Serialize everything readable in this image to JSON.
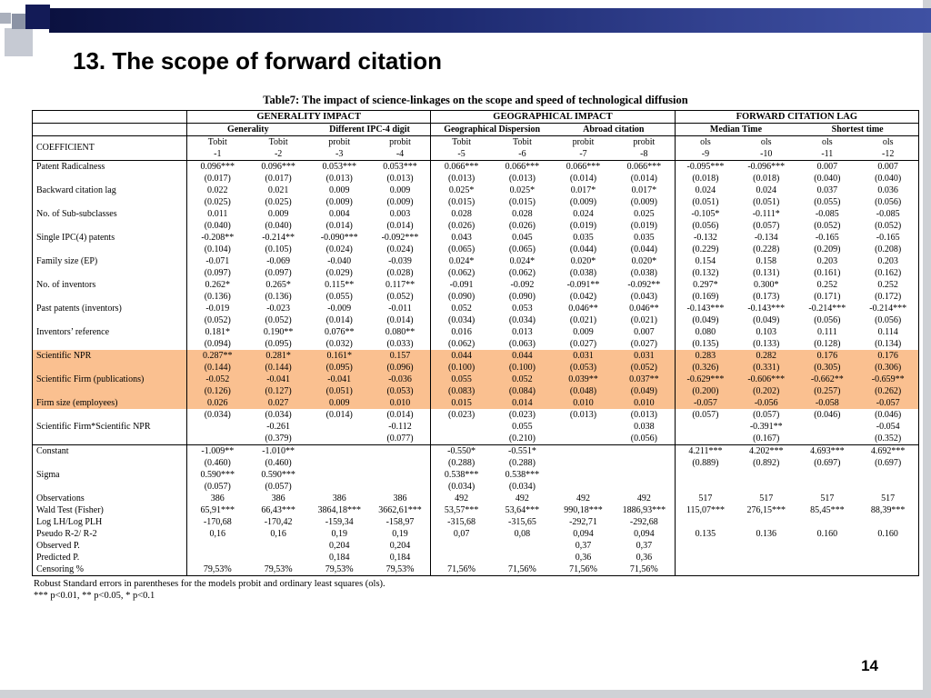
{
  "slide": {
    "title": "13. The scope of forward citation",
    "page_number": "14"
  },
  "table": {
    "caption": "Table7: The impact of science-linkages on the scope and speed of technological diffusion",
    "coefficient_header": "COEFFICIENT",
    "highlight_color": "#FAC090",
    "groups": [
      {
        "label": "GENERALITY IMPACT",
        "subgroups": [
          "Generality",
          "Different IPC-4 digit"
        ]
      },
      {
        "label": "GEOGRAPHICAL IMPACT",
        "subgroups": [
          "Geographical Dispersion",
          "Abroad citation"
        ]
      },
      {
        "label": "FORWARD CITATION LAG",
        "subgroups": [
          "Median Time",
          "Shortest time"
        ]
      }
    ],
    "methods": [
      "Tobit",
      "Tobit",
      "probit",
      "probit",
      "Tobit",
      "Tobit",
      "probit",
      "probit",
      "ols",
      "ols",
      "ols",
      "ols"
    ],
    "model_numbers": [
      "-1",
      "-2",
      "-3",
      "-4",
      "-5",
      "-6",
      "-7",
      "-8",
      "-9",
      "-10",
      "-11",
      "-12"
    ],
    "body_rows": [
      {
        "label": "Patent Radicalness",
        "cells": [
          "0.096***",
          "0.096***",
          "0.053***",
          "0.053***",
          "0.066***",
          "0.066***",
          "0.066***",
          "0.066***",
          "-0.095***",
          "-0.096***",
          "0.007",
          "0.007"
        ]
      },
      {
        "label": "",
        "cells": [
          "(0.017)",
          "(0.017)",
          "(0.013)",
          "(0.013)",
          "(0.013)",
          "(0.013)",
          "(0.014)",
          "(0.014)",
          "(0.018)",
          "(0.018)",
          "(0.040)",
          "(0.040)"
        ]
      },
      {
        "label": "Backward citation lag",
        "cells": [
          "0.022",
          "0.021",
          "0.009",
          "0.009",
          "0.025*",
          "0.025*",
          "0.017*",
          "0.017*",
          "0.024",
          "0.024",
          "0.037",
          "0.036"
        ]
      },
      {
        "label": "",
        "cells": [
          "(0.025)",
          "(0.025)",
          "(0.009)",
          "(0.009)",
          "(0.015)",
          "(0.015)",
          "(0.009)",
          "(0.009)",
          "(0.051)",
          "(0.051)",
          "(0.055)",
          "(0.056)"
        ]
      },
      {
        "label": "No. of Sub-subclasses",
        "cells": [
          "0.011",
          "0.009",
          "0.004",
          "0.003",
          "0.028",
          "0.028",
          "0.024",
          "0.025",
          "-0.105*",
          "-0.111*",
          "-0.085",
          "-0.085"
        ]
      },
      {
        "label": "",
        "cells": [
          "(0.040)",
          "(0.040)",
          "(0.014)",
          "(0.014)",
          "(0.026)",
          "(0.026)",
          "(0.019)",
          "(0.019)",
          "(0.056)",
          "(0.057)",
          "(0.052)",
          "(0.052)"
        ]
      },
      {
        "label": "Single IPC(4) patents",
        "cells": [
          "-0.208**",
          "-0.214**",
          "-0.090***",
          "-0.092***",
          "0.043",
          "0.045",
          "0.035",
          "0.035",
          "-0.132",
          "-0.134",
          "-0.165",
          "-0.165"
        ]
      },
      {
        "label": "",
        "cells": [
          "(0.104)",
          "(0.105)",
          "(0.024)",
          "(0.024)",
          "(0.065)",
          "(0.065)",
          "(0.044)",
          "(0.044)",
          "(0.229)",
          "(0.228)",
          "(0.209)",
          "(0.208)"
        ]
      },
      {
        "label": "Family size (EP)",
        "cells": [
          "-0.071",
          "-0.069",
          "-0.040",
          "-0.039",
          "0.024*",
          "0.024*",
          "0.020*",
          "0.020*",
          "0.154",
          "0.158",
          "0.203",
          "0.203"
        ]
      },
      {
        "label": "",
        "cells": [
          "(0.097)",
          "(0.097)",
          "(0.029)",
          "(0.028)",
          "(0.062)",
          "(0.062)",
          "(0.038)",
          "(0.038)",
          "(0.132)",
          "(0.131)",
          "(0.161)",
          "(0.162)"
        ]
      },
      {
        "label": "No. of inventors",
        "cells": [
          "0.262*",
          "0.265*",
          "0.115**",
          "0.117**",
          "-0.091",
          "-0.092",
          "-0.091**",
          "-0.092**",
          "0.297*",
          "0.300*",
          "0.252",
          "0.252"
        ]
      },
      {
        "label": "",
        "cells": [
          "(0.136)",
          "(0.136)",
          "(0.055)",
          "(0.052)",
          "(0.090)",
          "(0.090)",
          "(0.042)",
          "(0.043)",
          "(0.169)",
          "(0.173)",
          "(0.171)",
          "(0.172)"
        ]
      },
      {
        "label": "Past patents (inventors)",
        "cells": [
          "-0.019",
          "-0.023",
          "-0.009",
          "-0.011",
          "0.052",
          "0.053",
          "0.046**",
          "0.046**",
          "-0.143***",
          "-0.143***",
          "-0.214***",
          "-0.214***"
        ]
      },
      {
        "label": "",
        "cells": [
          "(0.052)",
          "(0.052)",
          "(0.014)",
          "(0.014)",
          "(0.034)",
          "(0.034)",
          "(0.021)",
          "(0.021)",
          "(0.049)",
          "(0.049)",
          "(0.056)",
          "(0.056)"
        ]
      },
      {
        "label": "Inventors’ reference",
        "cells": [
          "0.181*",
          "0.190**",
          "0.076**",
          "0.080**",
          "0.016",
          "0.013",
          "0.009",
          "0.007",
          "0.080",
          "0.103",
          "0.111",
          "0.114"
        ]
      },
      {
        "label": "",
        "cells": [
          "(0.094)",
          "(0.095)",
          "(0.032)",
          "(0.033)",
          "(0.062)",
          "(0.063)",
          "(0.027)",
          "(0.027)",
          "(0.135)",
          "(0.133)",
          "(0.128)",
          "(0.134)"
        ]
      },
      {
        "label": "Scientific NPR",
        "hl": true,
        "cells": [
          "0.287**",
          "0.281*",
          "0.161*",
          "0.157",
          "0.044",
          "0.044",
          "0.031",
          "0.031",
          "0.283",
          "0.282",
          "0.176",
          "0.176"
        ]
      },
      {
        "label": "",
        "hl": true,
        "cells": [
          "(0.144)",
          "(0.144)",
          "(0.095)",
          "(0.096)",
          "(0.100)",
          "(0.100)",
          "(0.053)",
          "(0.052)",
          "(0.326)",
          "(0.331)",
          "(0.305)",
          "(0.306)"
        ]
      },
      {
        "label": "Scientific Firm (publications)",
        "hl": true,
        "cells": [
          "-0.052",
          "-0.041",
          "-0.041",
          "-0.036",
          "0.055",
          "0.052",
          "0.039**",
          "0.037**",
          "-0.629***",
          "-0.606***",
          "-0.662**",
          "-0.659**"
        ]
      },
      {
        "label": "",
        "hl": true,
        "cells": [
          "(0.126)",
          "(0.127)",
          "(0.051)",
          "(0.053)",
          "(0.083)",
          "(0.084)",
          "(0.048)",
          "(0.049)",
          "(0.200)",
          "(0.202)",
          "(0.257)",
          "(0.262)"
        ]
      },
      {
        "label": "Firm size (employees)",
        "hl": true,
        "cells": [
          "0.026",
          "0.027",
          "0.009",
          "0.010",
          "0.015",
          "0.014",
          "0.010",
          "0.010",
          "-0.057",
          "-0.056",
          "-0.058",
          "-0.057"
        ]
      },
      {
        "label": "",
        "cells": [
          "(0.034)",
          "(0.034)",
          "(0.014)",
          "(0.014)",
          "(0.023)",
          "(0.023)",
          "(0.013)",
          "(0.013)",
          "(0.057)",
          "(0.057)",
          "(0.046)",
          "(0.046)"
        ]
      },
      {
        "label": "Scientific Firm*Scientific NPR",
        "cells": [
          "",
          "-0.261",
          "",
          "-0.112",
          "",
          "0.055",
          "",
          "0.038",
          "",
          "-0.391**",
          "",
          "-0.054"
        ]
      },
      {
        "label": "",
        "cells": [
          "",
          "(0.379)",
          "",
          "(0.077)",
          "",
          "(0.210)",
          "",
          "(0.056)",
          "",
          "(0.167)",
          "",
          "(0.352)"
        ]
      },
      {
        "label": "Constant",
        "top": true,
        "cells": [
          "-1.009**",
          "-1.010**",
          "",
          "",
          "-0.550*",
          "-0.551*",
          "",
          "",
          "4.211***",
          "4.202***",
          "4.693***",
          "4.692***"
        ]
      },
      {
        "label": "",
        "cells": [
          "(0.460)",
          "(0.460)",
          "",
          "",
          "(0.288)",
          "(0.288)",
          "",
          "",
          "(0.889)",
          "(0.892)",
          "(0.697)",
          "(0.697)"
        ]
      },
      {
        "label": "Sigma",
        "cells": [
          "0.590***",
          "0.590***",
          "",
          "",
          "0.538***",
          "0.538***",
          "",
          "",
          "",
          "",
          "",
          ""
        ]
      },
      {
        "label": "",
        "cells": [
          "(0.057)",
          "(0.057)",
          "",
          "",
          "(0.034)",
          "(0.034)",
          "",
          "",
          "",
          "",
          "",
          ""
        ]
      },
      {
        "label": "Observations",
        "cells": [
          "386",
          "386",
          "386",
          "386",
          "492",
          "492",
          "492",
          "492",
          "517",
          "517",
          "517",
          "517"
        ]
      },
      {
        "label": "Wald Test  (Fisher)",
        "cells": [
          "65,91***",
          "66,43***",
          "3864,18***",
          "3662,61***",
          "53,57***",
          "53,64***",
          "990,18***",
          "1886,93***",
          "115,07***",
          "276,15***",
          "85,45***",
          "88,39***"
        ]
      },
      {
        "label": "Log LH/Log PLH",
        "cells": [
          "-170,68",
          "-170,42",
          "-159,34",
          "-158,97",
          "-315,68",
          "-315,65",
          "-292,71",
          "-292,68",
          "",
          "",
          "",
          ""
        ]
      },
      {
        "label": "Pseudo R-2/ R-2",
        "cells": [
          "0,16",
          "0,16",
          "0,19",
          "0,19",
          "0,07",
          "0,08",
          "0,094",
          "0,094",
          "0.135",
          "0.136",
          "0.160",
          "0.160"
        ]
      },
      {
        "label": "Observed P.",
        "cells": [
          "",
          "",
          "0,204",
          "0,204",
          "",
          "",
          "0,37",
          "0,37",
          "",
          "",
          "",
          ""
        ]
      },
      {
        "label": "Predicted P.",
        "cells": [
          "",
          "",
          "0,184",
          "0,184",
          "",
          "",
          "0,36",
          "0,36",
          "",
          "",
          "",
          ""
        ]
      },
      {
        "label": "Censoring %",
        "cells": [
          "79,53%",
          "79,53%",
          "79,53%",
          "79,53%",
          "71,56%",
          "71,56%",
          "71,56%",
          "71,56%",
          "",
          "",
          "",
          ""
        ]
      }
    ],
    "notes": [
      "Robust Standard errors in parentheses for the models probit and ordinary least squares (ols).",
      "*** p<0.01, ** p<0.05, * p<0.1"
    ]
  }
}
